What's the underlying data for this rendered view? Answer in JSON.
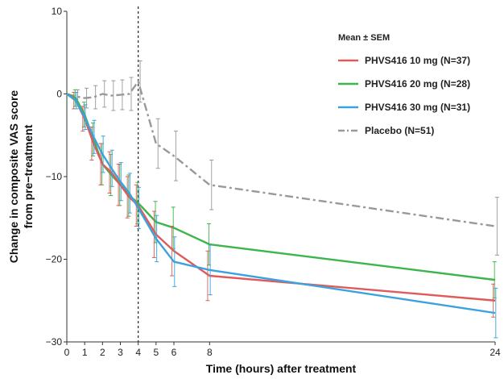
{
  "chart_data": {
    "type": "line",
    "title": "",
    "xlabel": "Time (hours) after treatment",
    "ylabel_lines": [
      "Change in composite VAS score",
      "from pre−treatment"
    ],
    "x_ticks": [
      0,
      1,
      2,
      3,
      4,
      5,
      6,
      8,
      24
    ],
    "y_ticks": [
      10,
      0,
      -10,
      -20,
      -30
    ],
    "y_tick_labels": [
      "10",
      "0",
      "−10",
      "−20",
      "−30"
    ],
    "xlim": [
      0,
      24
    ],
    "ylim": [
      -30,
      10
    ],
    "reference_line_x": 4,
    "legend_title": "Mean ± SEM",
    "legend_position": "top-right",
    "grid": false,
    "series": [
      {
        "name": "PHVS416 10 mg (N=37)",
        "color": "#e05a5a",
        "dash": "solid",
        "x": [
          0,
          0.5,
          1,
          1.5,
          2,
          2.5,
          3,
          3.5,
          4,
          5,
          6,
          8,
          24
        ],
        "y": [
          0,
          -0.8,
          -3,
          -6,
          -8.5,
          -9.5,
          -11,
          -12.5,
          -13.5,
          -17,
          -19,
          -22,
          -25
        ],
        "err": [
          0,
          1,
          1.5,
          2,
          2.5,
          2.5,
          2.5,
          2.5,
          2.5,
          2.8,
          3,
          3,
          2
        ]
      },
      {
        "name": "PHVS416 20 mg (N=28)",
        "color": "#3cb54a",
        "dash": "solid",
        "x": [
          0,
          0.5,
          1,
          1.5,
          2,
          2.5,
          3,
          3.5,
          4,
          5,
          6,
          8,
          24
        ],
        "y": [
          0,
          -0.5,
          -2.5,
          -5.5,
          -8.5,
          -9.8,
          -11,
          -12.3,
          -13.2,
          -15.5,
          -16.2,
          -18.2,
          -22.5
        ],
        "err": [
          0,
          1,
          1.5,
          2,
          2.5,
          2.5,
          2.5,
          2.5,
          2.5,
          2.5,
          2.5,
          2.5,
          2.2
        ]
      },
      {
        "name": "PHVS416 30 mg (N=31)",
        "color": "#3aa3dd",
        "dash": "solid",
        "x": [
          0,
          0.5,
          1,
          1.5,
          2,
          2.5,
          3,
          3.5,
          4,
          5,
          6,
          8,
          24
        ],
        "y": [
          0,
          -0.8,
          -2.8,
          -5.2,
          -7.3,
          -9,
          -10.6,
          -12,
          -13.8,
          -17.5,
          -20.3,
          -21.3,
          -26.5
        ],
        "err": [
          0,
          1,
          1.5,
          2,
          2.2,
          2.2,
          2.3,
          2.4,
          2.5,
          2.8,
          3,
          3,
          3
        ]
      },
      {
        "name": "Placebo (N=51)",
        "color": "#999999",
        "dash": "dashdot",
        "x": [
          0,
          0.5,
          1,
          1.5,
          2,
          2.5,
          3,
          3.5,
          4,
          5,
          6,
          8,
          24
        ],
        "y": [
          0,
          -0.3,
          -0.5,
          -0.4,
          0,
          -0.2,
          -0.1,
          0,
          1.5,
          -6,
          -7.5,
          -11,
          -16
        ],
        "err": [
          0,
          0.8,
          1.2,
          1.4,
          1.6,
          1.8,
          1.8,
          2,
          2.5,
          3,
          3,
          3,
          3.5
        ]
      }
    ]
  }
}
